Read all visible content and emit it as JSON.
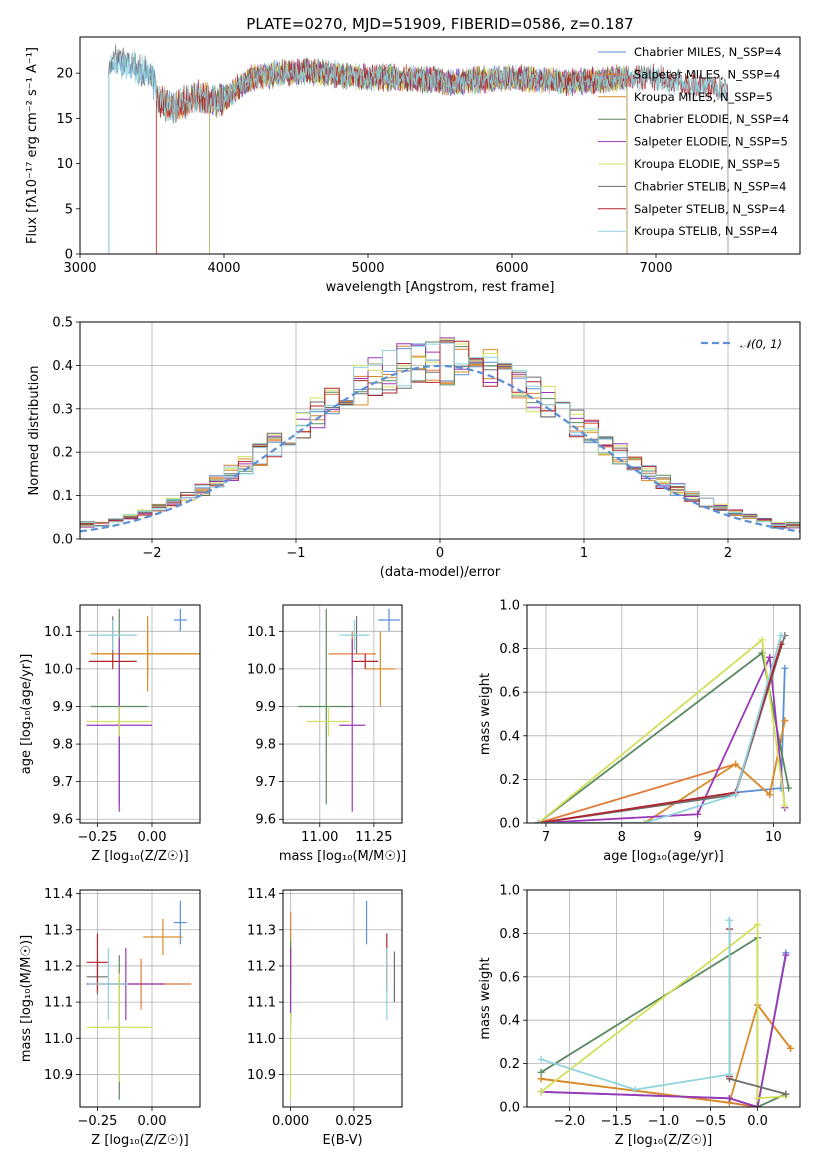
{
  "colors": [
    "#5b8fd6",
    "#e07b39",
    "#d98c2b",
    "#5a8a60",
    "#9a38b8",
    "#d4e05c",
    "#6e6e6e",
    "#b5232a",
    "#8fd3de"
  ],
  "chart_data": [
    {
      "type": "line",
      "title": "PLATE=0270, MJD=51909, FIBERID=0586, z=0.187",
      "xlabel": "wavelength [Angstrom, rest frame]",
      "ylabel": "Flux [fλ10⁻¹⁷ erg cm⁻² s⁻¹ A⁻¹]",
      "xlim": [
        3000,
        8000
      ],
      "ylim": [
        0,
        24
      ],
      "xticks": [
        3000,
        4000,
        5000,
        6000,
        7000
      ],
      "yticks": [
        0,
        5,
        10,
        15,
        20
      ],
      "grid": false,
      "legend": "top-right",
      "series": [
        {
          "name": "Chabrier MILES, N_SSP=4",
          "start": 3200,
          "end": 6800
        },
        {
          "name": "Salpeter MILES, N_SSP=4",
          "start": 3530,
          "end": 6800
        },
        {
          "name": "Kroupa MILES, N_SSP=5",
          "start": 3530,
          "end": 6800
        },
        {
          "name": "Chabrier ELODIE, N_SSP=4",
          "start": 3900,
          "end": 6800
        },
        {
          "name": "Salpeter ELODIE, N_SSP=5",
          "start": 3900,
          "end": 6800
        },
        {
          "name": "Kroupa ELODIE, N_SSP=5",
          "start": 3900,
          "end": 6800
        },
        {
          "name": "Chabrier STELIB, N_SSP=4",
          "start": 3200,
          "end": 7500
        },
        {
          "name": "Salpeter STELIB, N_SSP=4",
          "start": 3530,
          "end": 7500
        },
        {
          "name": "Kroupa STELIB, N_SSP=4",
          "start": 3200,
          "end": 7500
        }
      ],
      "continuum": {
        "x": [
          3200,
          3250,
          3300,
          3350,
          3400,
          3450,
          3500,
          3550,
          3600,
          3650,
          3700,
          3800,
          3900,
          4000,
          4100,
          4200,
          4400,
          4600,
          4800,
          5000,
          5200,
          5400,
          5600,
          5800,
          6000,
          6200,
          6400,
          6600,
          6800,
          7000,
          7200,
          7400,
          7500
        ],
        "y": [
          20.5,
          21.5,
          21.0,
          21.2,
          20.5,
          20.0,
          19.5,
          17.0,
          16.5,
          16.2,
          16.5,
          17.5,
          17.0,
          17.0,
          18.5,
          19.5,
          20.0,
          20.2,
          19.8,
          19.5,
          19.5,
          19.3,
          19.0,
          19.3,
          19.5,
          19.3,
          19.0,
          19.2,
          19.5,
          19.5,
          18.8,
          18.5,
          18.0
        ]
      }
    },
    {
      "type": "bar",
      "xlabel": "(data-model)/error",
      "ylabel": "Normed distribution",
      "xlim": [
        -2.5,
        2.5
      ],
      "ylim": [
        0,
        0.5
      ],
      "xticks": [
        -2,
        -1,
        0,
        1,
        2
      ],
      "yticks": [
        0.0,
        0.1,
        0.2,
        0.3,
        0.4,
        0.5
      ],
      "grid": true,
      "legend": "top-right",
      "reference": {
        "name": "𝒩(0, 1)",
        "mean": 0,
        "sigma": 1
      },
      "bin_width": 0.1,
      "bin_start": -2.5
    },
    {
      "type": "scatter",
      "xlabel": "Z [log₁₀(Z/Z☉)]",
      "ylabel": "age  [log₁₀(age/yr)]",
      "xlim": [
        -0.33,
        0.22
      ],
      "ylim": [
        9.59,
        10.17
      ],
      "xticks": [
        -0.25,
        0.0
      ],
      "xticklabels": [
        "−0.25",
        "0.00"
      ],
      "yticks": [
        9.6,
        9.7,
        9.8,
        9.9,
        10.0,
        10.1
      ],
      "grid": true,
      "points": [
        {
          "x": 0.13,
          "xerr": 0.03,
          "y": 10.13,
          "yerr": 0.03
        },
        {
          "x": -0.02,
          "xerr": 0.26,
          "y": 10.04,
          "yerr": 0.06
        },
        {
          "x": -0.02,
          "xerr": 0.26,
          "y": 10.04,
          "yerr": 0.1
        },
        {
          "x": -0.15,
          "xerr": 0.13,
          "y": 9.9,
          "yerr": 0.26
        },
        {
          "x": -0.15,
          "xerr": 0.15,
          "y": 9.85,
          "yerr": 0.23
        },
        {
          "x": -0.15,
          "xerr": 0.15,
          "y": 9.86,
          "yerr": 0.04
        },
        {
          "x": -0.18,
          "xerr": 0.11,
          "y": 10.09,
          "yerr": 0.05
        },
        {
          "x": -0.18,
          "xerr": 0.11,
          "y": 10.02,
          "yerr": 0.02
        },
        {
          "x": -0.18,
          "xerr": 0.11,
          "y": 10.09,
          "yerr": 0.04
        }
      ]
    },
    {
      "type": "scatter",
      "xlabel": "mass [log₁₀(M/M☉)]",
      "ylabel": "",
      "xlim": [
        10.83,
        11.38
      ],
      "ylim": [
        9.59,
        10.17
      ],
      "xticks": [
        11.0,
        11.25
      ],
      "xticklabels": [
        "11.00",
        "11.25"
      ],
      "yticks": [
        9.6,
        9.7,
        9.8,
        9.9,
        10.0,
        10.1
      ],
      "grid": true,
      "points": [
        {
          "x": 11.32,
          "xerr": 0.05,
          "y": 10.13,
          "yerr": 0.03
        },
        {
          "x": 11.15,
          "xerr": 0.11,
          "y": 10.04,
          "yerr": 0.06
        },
        {
          "x": 11.28,
          "xerr": 0.07,
          "y": 10.0,
          "yerr": 0.1
        },
        {
          "x": 11.03,
          "xerr": 0.13,
          "y": 9.9,
          "yerr": 0.26
        },
        {
          "x": 11.15,
          "xerr": 0.06,
          "y": 9.85,
          "yerr": 0.23
        },
        {
          "x": 11.04,
          "xerr": 0.1,
          "y": 9.86,
          "yerr": 0.04
        },
        {
          "x": 11.17,
          "xerr": 0.06,
          "y": 10.09,
          "yerr": 0.05
        },
        {
          "x": 11.21,
          "xerr": 0.06,
          "y": 10.02,
          "yerr": 0.02
        },
        {
          "x": 11.16,
          "xerr": 0.07,
          "y": 10.09,
          "yerr": 0.04
        }
      ]
    },
    {
      "type": "line",
      "xlabel": "age  [log₁₀(age/yr)]",
      "ylabel": "mass weight",
      "xlim": [
        6.75,
        10.35
      ],
      "ylim": [
        0,
        1
      ],
      "xticks": [
        7,
        8,
        9,
        10
      ],
      "yticks": [
        0.0,
        0.2,
        0.4,
        0.6,
        0.8,
        1.0
      ],
      "grid": true,
      "series": [
        {
          "x": [
            6.9,
            9.5,
            10.1,
            10.15
          ],
          "y": [
            0.0,
            0.14,
            0.16,
            0.71
          ]
        },
        {
          "x": [
            6.9,
            9.5,
            9.95,
            10.15
          ],
          "y": [
            0.0,
            0.27,
            0.13,
            0.47
          ]
        },
        {
          "x": [
            6.9,
            8.3,
            9.5,
            9.95,
            10.15
          ],
          "y": [
            0.0,
            0.0,
            0.27,
            0.13,
            0.47
          ]
        },
        {
          "x": [
            6.9,
            9.85,
            10.2
          ],
          "y": [
            0.0,
            0.78,
            0.16
          ]
        },
        {
          "x": [
            6.9,
            9.0,
            9.95,
            10.15
          ],
          "y": [
            0.0,
            0.04,
            0.76,
            0.07
          ]
        },
        {
          "x": [
            6.9,
            9.85,
            10.15
          ],
          "y": [
            0.0,
            0.84,
            0.08
          ]
        },
        {
          "x": [
            6.9,
            9.5,
            10.15
          ],
          "y": [
            0.0,
            0.13,
            0.86
          ]
        },
        {
          "x": [
            6.9,
            9.5,
            10.1
          ],
          "y": [
            0.0,
            0.14,
            0.82
          ]
        },
        {
          "x": [
            6.9,
            8.3,
            9.5,
            10.1
          ],
          "y": [
            0.0,
            0.0,
            0.13,
            0.86
          ]
        }
      ]
    },
    {
      "type": "scatter",
      "xlabel": "Z [log₁₀(Z/Z☉)]",
      "ylabel": "mass [log₁₀(M/M☉)]",
      "xlim": [
        -0.33,
        0.22
      ],
      "ylim": [
        10.81,
        11.41
      ],
      "xticks": [
        -0.25,
        0.0
      ],
      "xticklabels": [
        "−0.25",
        "0.00"
      ],
      "yticks": [
        10.9,
        11.0,
        11.1,
        11.2,
        11.3,
        11.4
      ],
      "grid": true,
      "points": [
        {
          "x": 0.13,
          "xerr": 0.03,
          "y": 11.32,
          "yerr": 0.06
        },
        {
          "x": -0.05,
          "xerr": 0.23,
          "y": 11.15,
          "yerr": 0.07
        },
        {
          "x": 0.05,
          "xerr": 0.09,
          "y": 11.28,
          "yerr": 0.05
        },
        {
          "x": -0.15,
          "xerr": 0.13,
          "y": 11.03,
          "yerr": 0.2
        },
        {
          "x": -0.12,
          "xerr": 0.18,
          "y": 11.15,
          "yerr": 0.1
        },
        {
          "x": -0.15,
          "xerr": 0.15,
          "y": 11.03,
          "yerr": 0.15
        },
        {
          "x": -0.25,
          "xerr": 0.05,
          "y": 11.17,
          "yerr": 0.05
        },
        {
          "x": -0.25,
          "xerr": 0.05,
          "y": 11.21,
          "yerr": 0.08
        },
        {
          "x": -0.2,
          "xerr": 0.09,
          "y": 11.15,
          "yerr": 0.1
        }
      ]
    },
    {
      "type": "scatter",
      "xlabel": "E(B-V)",
      "ylabel": "",
      "xlim": [
        -0.003,
        0.044
      ],
      "ylim": [
        10.81,
        11.41
      ],
      "xticks": [
        0.0,
        0.025
      ],
      "xticklabels": [
        "0.000",
        "0.025"
      ],
      "yticks": [
        10.9,
        11.0,
        11.1,
        11.2,
        11.3,
        11.4
      ],
      "grid": true,
      "points": [
        {
          "x": 0.03,
          "y": 11.32,
          "yerr": 0.06
        },
        {
          "x": 0.0,
          "y": 11.25,
          "yerr": 0.1
        },
        {
          "x": 0.0,
          "y": 11.2,
          "yerr": 0.09
        },
        {
          "x": 0.0,
          "y": 11.15,
          "yerr": 0.12
        },
        {
          "x": 0.0,
          "y": 11.15,
          "yerr": 0.1
        },
        {
          "x": 0.0,
          "y": 10.95,
          "yerr": 0.12
        },
        {
          "x": 0.041,
          "y": 11.17,
          "yerr": 0.07
        },
        {
          "x": 0.038,
          "y": 11.21,
          "yerr": 0.08
        },
        {
          "x": 0.038,
          "y": 11.15,
          "yerr": 0.1
        }
      ]
    },
    {
      "type": "line",
      "xlabel": "Z [log₁₀(Z/Z☉)]",
      "ylabel": "mass weight",
      "xlim": [
        -2.45,
        0.45
      ],
      "ylim": [
        0,
        1
      ],
      "xticks": [
        -2.0,
        -1.5,
        -1.0,
        -0.5,
        0.0
      ],
      "xticklabels": [
        "−2.0",
        "−1.5",
        "−1.0",
        "−0.5",
        "0.0"
      ],
      "yticks": [
        0.0,
        0.2,
        0.4,
        0.6,
        0.8,
        1.0
      ],
      "grid": true,
      "series": [
        {
          "x": [
            -2.3,
            -0.3,
            0.0,
            0.3
          ],
          "y": [
            0.07,
            0.04,
            0.0,
            0.71
          ]
        },
        {
          "x": [
            -2.3,
            -0.3,
            0.0,
            0.0,
            0.35
          ],
          "y": [
            0.13,
            0.02,
            0.0,
            0.47,
            0.27
          ]
        },
        {
          "x": [
            -2.3,
            -0.3,
            0.0,
            0.35
          ],
          "y": [
            0.13,
            0.02,
            0.47,
            0.27
          ]
        },
        {
          "x": [
            -2.3,
            0.0,
            0.0,
            0.3
          ],
          "y": [
            0.16,
            0.78,
            0.0,
            0.06
          ]
        },
        {
          "x": [
            -2.3,
            -0.3,
            0.0,
            0.3
          ],
          "y": [
            0.07,
            0.04,
            0.0,
            0.7
          ]
        },
        {
          "x": [
            -2.3,
            0.0,
            0.0,
            0.3
          ],
          "y": [
            0.07,
            0.84,
            0.04,
            0.05
          ]
        },
        {
          "x": [
            -0.3,
            -0.3,
            0.3
          ],
          "y": [
            0.86,
            0.13,
            0.06
          ]
        },
        {
          "x": [
            -0.3,
            -0.3
          ],
          "y": [
            0.82,
            0.14
          ]
        },
        {
          "x": [
            -2.3,
            -1.3,
            -0.3,
            -0.3
          ],
          "y": [
            0.22,
            0.08,
            0.15,
            0.86
          ]
        }
      ]
    }
  ]
}
